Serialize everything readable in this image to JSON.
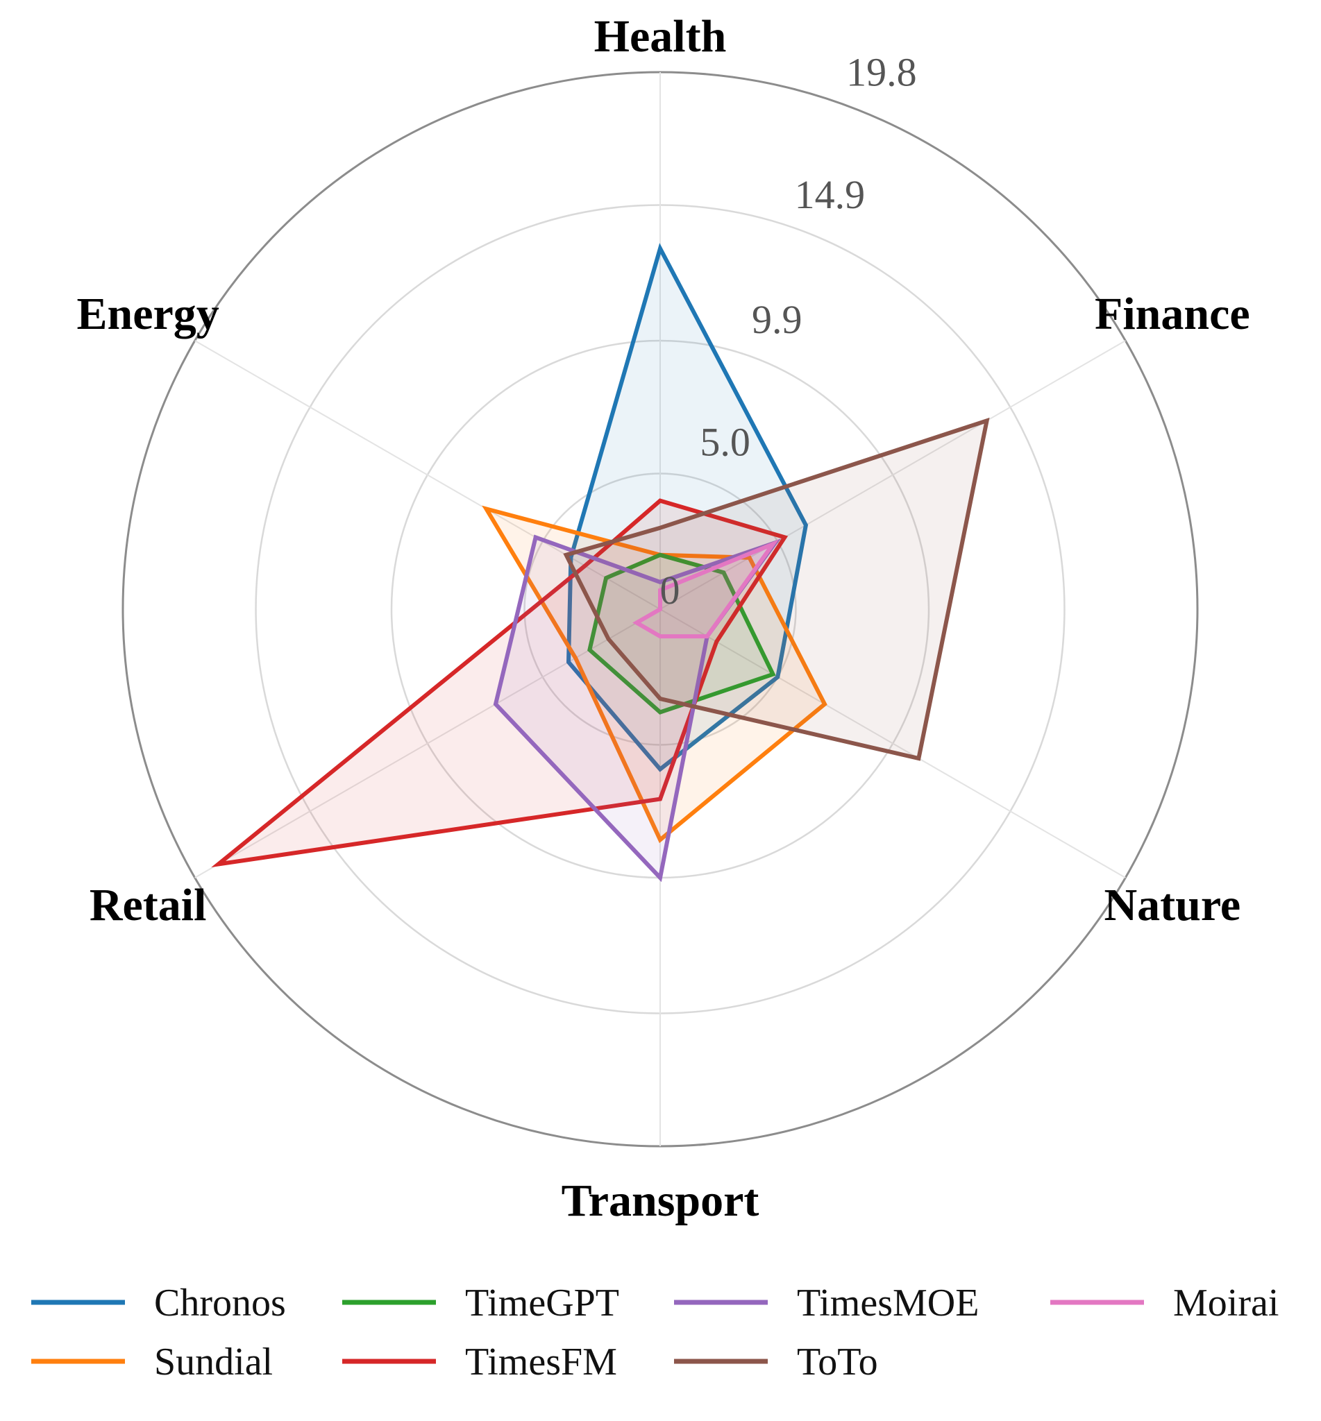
{
  "chart_data": {
    "type": "radar",
    "axes": [
      "Health",
      "Finance",
      "Nature",
      "Transport",
      "Retail",
      "Energy"
    ],
    "rlim": [
      0,
      19.8
    ],
    "ticks": [
      "0",
      "5.0",
      "9.9",
      "14.9",
      "19.8"
    ],
    "tick_values": [
      0,
      5.0,
      9.9,
      14.9,
      19.8
    ],
    "grid": true,
    "legend_position": "bottom",
    "series": [
      {
        "name": "Chronos",
        "color": "#1f77b4",
        "values": [
          13.3,
          6.2,
          5.0,
          5.9,
          3.9,
          3.8
        ]
      },
      {
        "name": "Sundial",
        "color": "#ff7f0e",
        "values": [
          2.0,
          3.8,
          7.0,
          8.5,
          3.6,
          7.4
        ]
      },
      {
        "name": "TimeGPT",
        "color": "#2ca02c",
        "values": [
          2.0,
          2.7,
          4.8,
          3.8,
          3.0,
          2.3
        ]
      },
      {
        "name": "TimesFM",
        "color": "#d62728",
        "values": [
          4.0,
          5.3,
          2.4,
          7.0,
          18.8,
          3.2
        ]
      },
      {
        "name": "TimesMOE",
        "color": "#9467bd",
        "values": [
          1.0,
          4.9,
          2.0,
          9.9,
          7.0,
          5.3
        ]
      },
      {
        "name": "ToTo",
        "color": "#8c564b",
        "values": [
          3.0,
          13.9,
          11.0,
          3.3,
          2.2,
          4.0
        ]
      },
      {
        "name": "Moirai",
        "color": "#e377c2",
        "values": [
          0.7,
          4.8,
          2.0,
          1.0,
          1.0,
          0.0
        ]
      }
    ]
  }
}
